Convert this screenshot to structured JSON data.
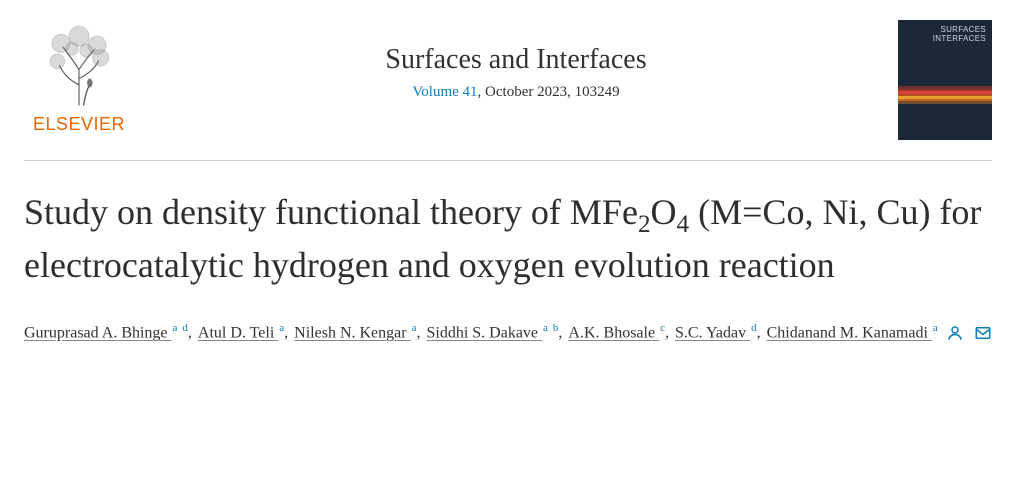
{
  "publisher": {
    "name": "ELSEVIER"
  },
  "journal": {
    "name": "Surfaces and Interfaces",
    "volume_link": "Volume 41",
    "issue_date": ", October 2023, 103249",
    "cover_line1": "SURFACES",
    "cover_line2": "INTERFACES"
  },
  "article": {
    "title_part1": "Study on density functional theory of MFe",
    "title_sub1": "2",
    "title_part2": "O",
    "title_sub2": "4",
    "title_part3": " (M=Co, Ni, Cu) for electrocatalytic hydrogen and oxygen evolution reaction"
  },
  "authors": [
    {
      "name": "Guruprasad A. Bhinge",
      "affils": [
        "a",
        "d"
      ]
    },
    {
      "name": "Atul D. Teli",
      "affils": [
        "a"
      ]
    },
    {
      "name": "Nilesh N. Kengar",
      "affils": [
        "a"
      ]
    },
    {
      "name": "Siddhi S. Dakave",
      "affils": [
        "a",
        "b"
      ]
    },
    {
      "name": "A.K. Bhosale",
      "affils": [
        "c"
      ]
    },
    {
      "name": "S.C. Yadav",
      "affils": [
        "d"
      ]
    },
    {
      "name": "Chidanand M. Kanamadi",
      "affils": [
        "a"
      ],
      "corresponding": true
    }
  ],
  "colors": {
    "publisher_orange": "#eb6500",
    "link_blue": "#0c7dbb",
    "text": "#323232",
    "rule": "#cccccc"
  }
}
